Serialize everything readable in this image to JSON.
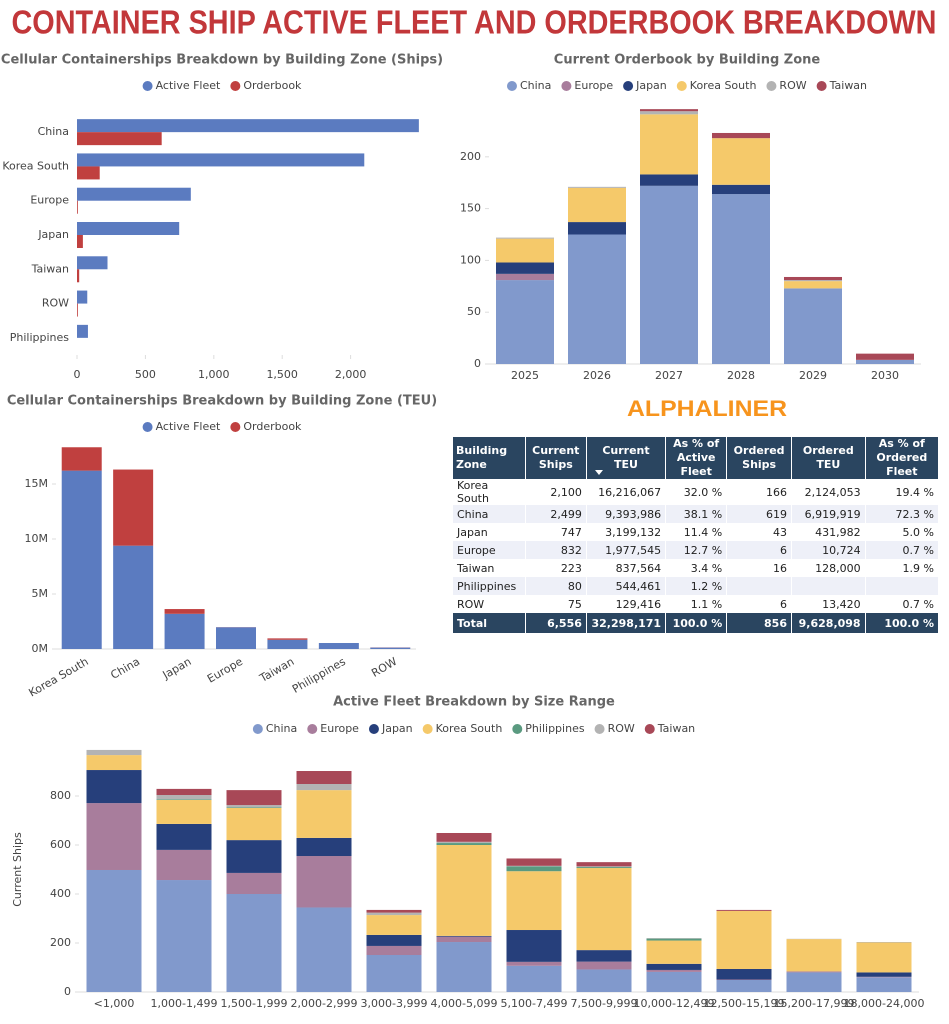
{
  "title": "CONTAINER SHIP ACTIVE FLEET AND ORDERBOOK BREAKDOWN",
  "brand": "ALPHALINER",
  "chart_data": [
    {
      "type": "hbar",
      "title": "Cellular Containerships Breakdown by Building Zone (Ships)",
      "legend": "top",
      "categories": [
        "China",
        "Korea South",
        "Europe",
        "Japan",
        "Taiwan",
        "ROW",
        "Philippines"
      ],
      "series": [
        {
          "name": "Active Fleet",
          "color": "#5b7bc0",
          "values": [
            2499,
            2100,
            832,
            747,
            223,
            75,
            80
          ]
        },
        {
          "name": "Orderbook",
          "color": "#c0403f",
          "values": [
            619,
            166,
            6,
            43,
            16,
            6,
            null
          ]
        }
      ],
      "xlim": [
        0,
        2500
      ],
      "xticks": [
        0,
        500,
        {
          "value": 1000,
          "label": "1,000"
        },
        {
          "value": 1500,
          "label": "1,500"
        },
        {
          "value": 2000,
          "label": "2,000"
        }
      ]
    },
    {
      "type": "stacked-bar",
      "title": "Current Orderbook by Building Zone",
      "legend": "top",
      "categories": [
        "2025",
        "2026",
        "2027",
        "2028",
        "2029",
        "2030"
      ],
      "series": [
        {
          "name": "China",
          "color": "#8199cc",
          "values": [
            81,
            125,
            172,
            164,
            73,
            4
          ]
        },
        {
          "name": "Europe",
          "color": "#a87d9c",
          "values": [
            6,
            0,
            0,
            0,
            0,
            0
          ]
        },
        {
          "name": "Japan",
          "color": "#263f7b",
          "values": [
            11,
            12,
            11,
            9,
            0,
            0
          ]
        },
        {
          "name": "Korea South",
          "color": "#f5c96a",
          "values": [
            23,
            33,
            58,
            45,
            7,
            0
          ]
        },
        {
          "name": "ROW",
          "color": "#b3b3b3",
          "values": [
            1,
            1,
            3,
            0,
            1,
            0
          ]
        },
        {
          "name": "Taiwan",
          "color": "#a84857",
          "values": [
            0,
            0,
            2,
            5,
            3,
            6
          ]
        }
      ],
      "ylim": [
        0,
        250
      ],
      "yticks": [
        0,
        50,
        100,
        150,
        200
      ]
    },
    {
      "type": "stacked-bar",
      "title": "Cellular Containerships Breakdown by Building Zone (TEU)",
      "legend": "top",
      "categories": [
        "Korea South",
        "China",
        "Japan",
        "Europe",
        "Taiwan",
        "Philippines",
        "ROW"
      ],
      "series": [
        {
          "name": "Active Fleet",
          "color": "#5b7bc0",
          "values": [
            16216067,
            9393986,
            3199132,
            1977545,
            837564,
            544461,
            129416
          ]
        },
        {
          "name": "Orderbook",
          "color": "#c0403f",
          "values": [
            2124053,
            6919919,
            431982,
            10724,
            128000,
            null,
            13420
          ]
        }
      ],
      "ylim": [
        0,
        19000000
      ],
      "yticks": [
        {
          "value": 0,
          "label": "0M"
        },
        {
          "value": 5000000,
          "label": "5M"
        },
        {
          "value": 10000000,
          "label": "10M"
        },
        {
          "value": 15000000,
          "label": "15M"
        }
      ]
    },
    {
      "type": "stacked-bar",
      "title": "Active Fleet Breakdown by Size Range",
      "legend": "top",
      "y_label": "Current Ships",
      "categories": [
        "<1,000",
        "1,000-1,499",
        "1,500-1,999",
        "2,000-2,999",
        "3,000-3,999",
        "4,000-5,099",
        "5,100-7,499",
        "7,500-9,999",
        "10,000-12,499",
        "12,500-15,199",
        "15,200-17,999",
        "18,000-24,000"
      ],
      "series": [
        {
          "name": "China",
          "color": "#8199cc",
          "values": [
            498,
            457,
            400,
            345,
            151,
            204,
            107,
            92,
            82,
            49,
            80,
            60
          ]
        },
        {
          "name": "Europe",
          "color": "#a87d9c",
          "values": [
            273,
            123,
            86,
            210,
            37,
            22,
            16,
            32,
            8,
            2,
            4,
            2
          ]
        },
        {
          "name": "Japan",
          "color": "#263f7b",
          "values": [
            135,
            106,
            134,
            74,
            45,
            3,
            130,
            47,
            25,
            43,
            0,
            18
          ]
        },
        {
          "name": "Korea South",
          "color": "#f5c96a",
          "values": [
            61,
            98,
            131,
            195,
            81,
            371,
            240,
            335,
            95,
            237,
            132,
            122
          ]
        },
        {
          "name": "Philippines",
          "color": "#5a9a80",
          "values": [
            0,
            3,
            3,
            0,
            0,
            8,
            20,
            4,
            8,
            0,
            0,
            0
          ]
        },
        {
          "name": "ROW",
          "color": "#b3b3b3",
          "values": [
            21,
            17,
            9,
            25,
            10,
            5,
            2,
            3,
            2,
            0,
            1,
            2
          ]
        },
        {
          "name": "Taiwan",
          "color": "#a84857",
          "values": [
            0,
            25,
            61,
            53,
            11,
            36,
            30,
            17,
            0,
            4,
            0,
            0
          ]
        }
      ],
      "ylim": [
        0,
        1000
      ],
      "yticks": [
        0,
        200,
        400,
        600,
        800
      ]
    }
  ],
  "table": {
    "columns": [
      "Building Zone",
      "Current Ships",
      "Current TEU",
      "As % of Active Fleet",
      "Ordered Ships",
      "Ordered TEU",
      "As % of Ordered Fleet"
    ],
    "rows": [
      [
        "Korea South",
        "2,100",
        "16,216,067",
        "32.0 %",
        "166",
        "2,124,053",
        "19.4 %"
      ],
      [
        "China",
        "2,499",
        "9,393,986",
        "38.1 %",
        "619",
        "6,919,919",
        "72.3 %"
      ],
      [
        "Japan",
        "747",
        "3,199,132",
        "11.4 %",
        "43",
        "431,982",
        "5.0 %"
      ],
      [
        "Europe",
        "832",
        "1,977,545",
        "12.7 %",
        "6",
        "10,724",
        "0.7 %"
      ],
      [
        "Taiwan",
        "223",
        "837,564",
        "3.4 %",
        "16",
        "128,000",
        "1.9 %"
      ],
      [
        "Philippines",
        "80",
        "544,461",
        "1.2 %",
        null,
        null,
        null
      ],
      [
        "ROW",
        "75",
        "129,416",
        "1.1 %",
        "6",
        "13,420",
        "0.7 %"
      ]
    ],
    "total": [
      "Total",
      "6,556",
      "32,298,171",
      "100.0 %",
      "856",
      "9,628,098",
      "100.0 %"
    ]
  }
}
